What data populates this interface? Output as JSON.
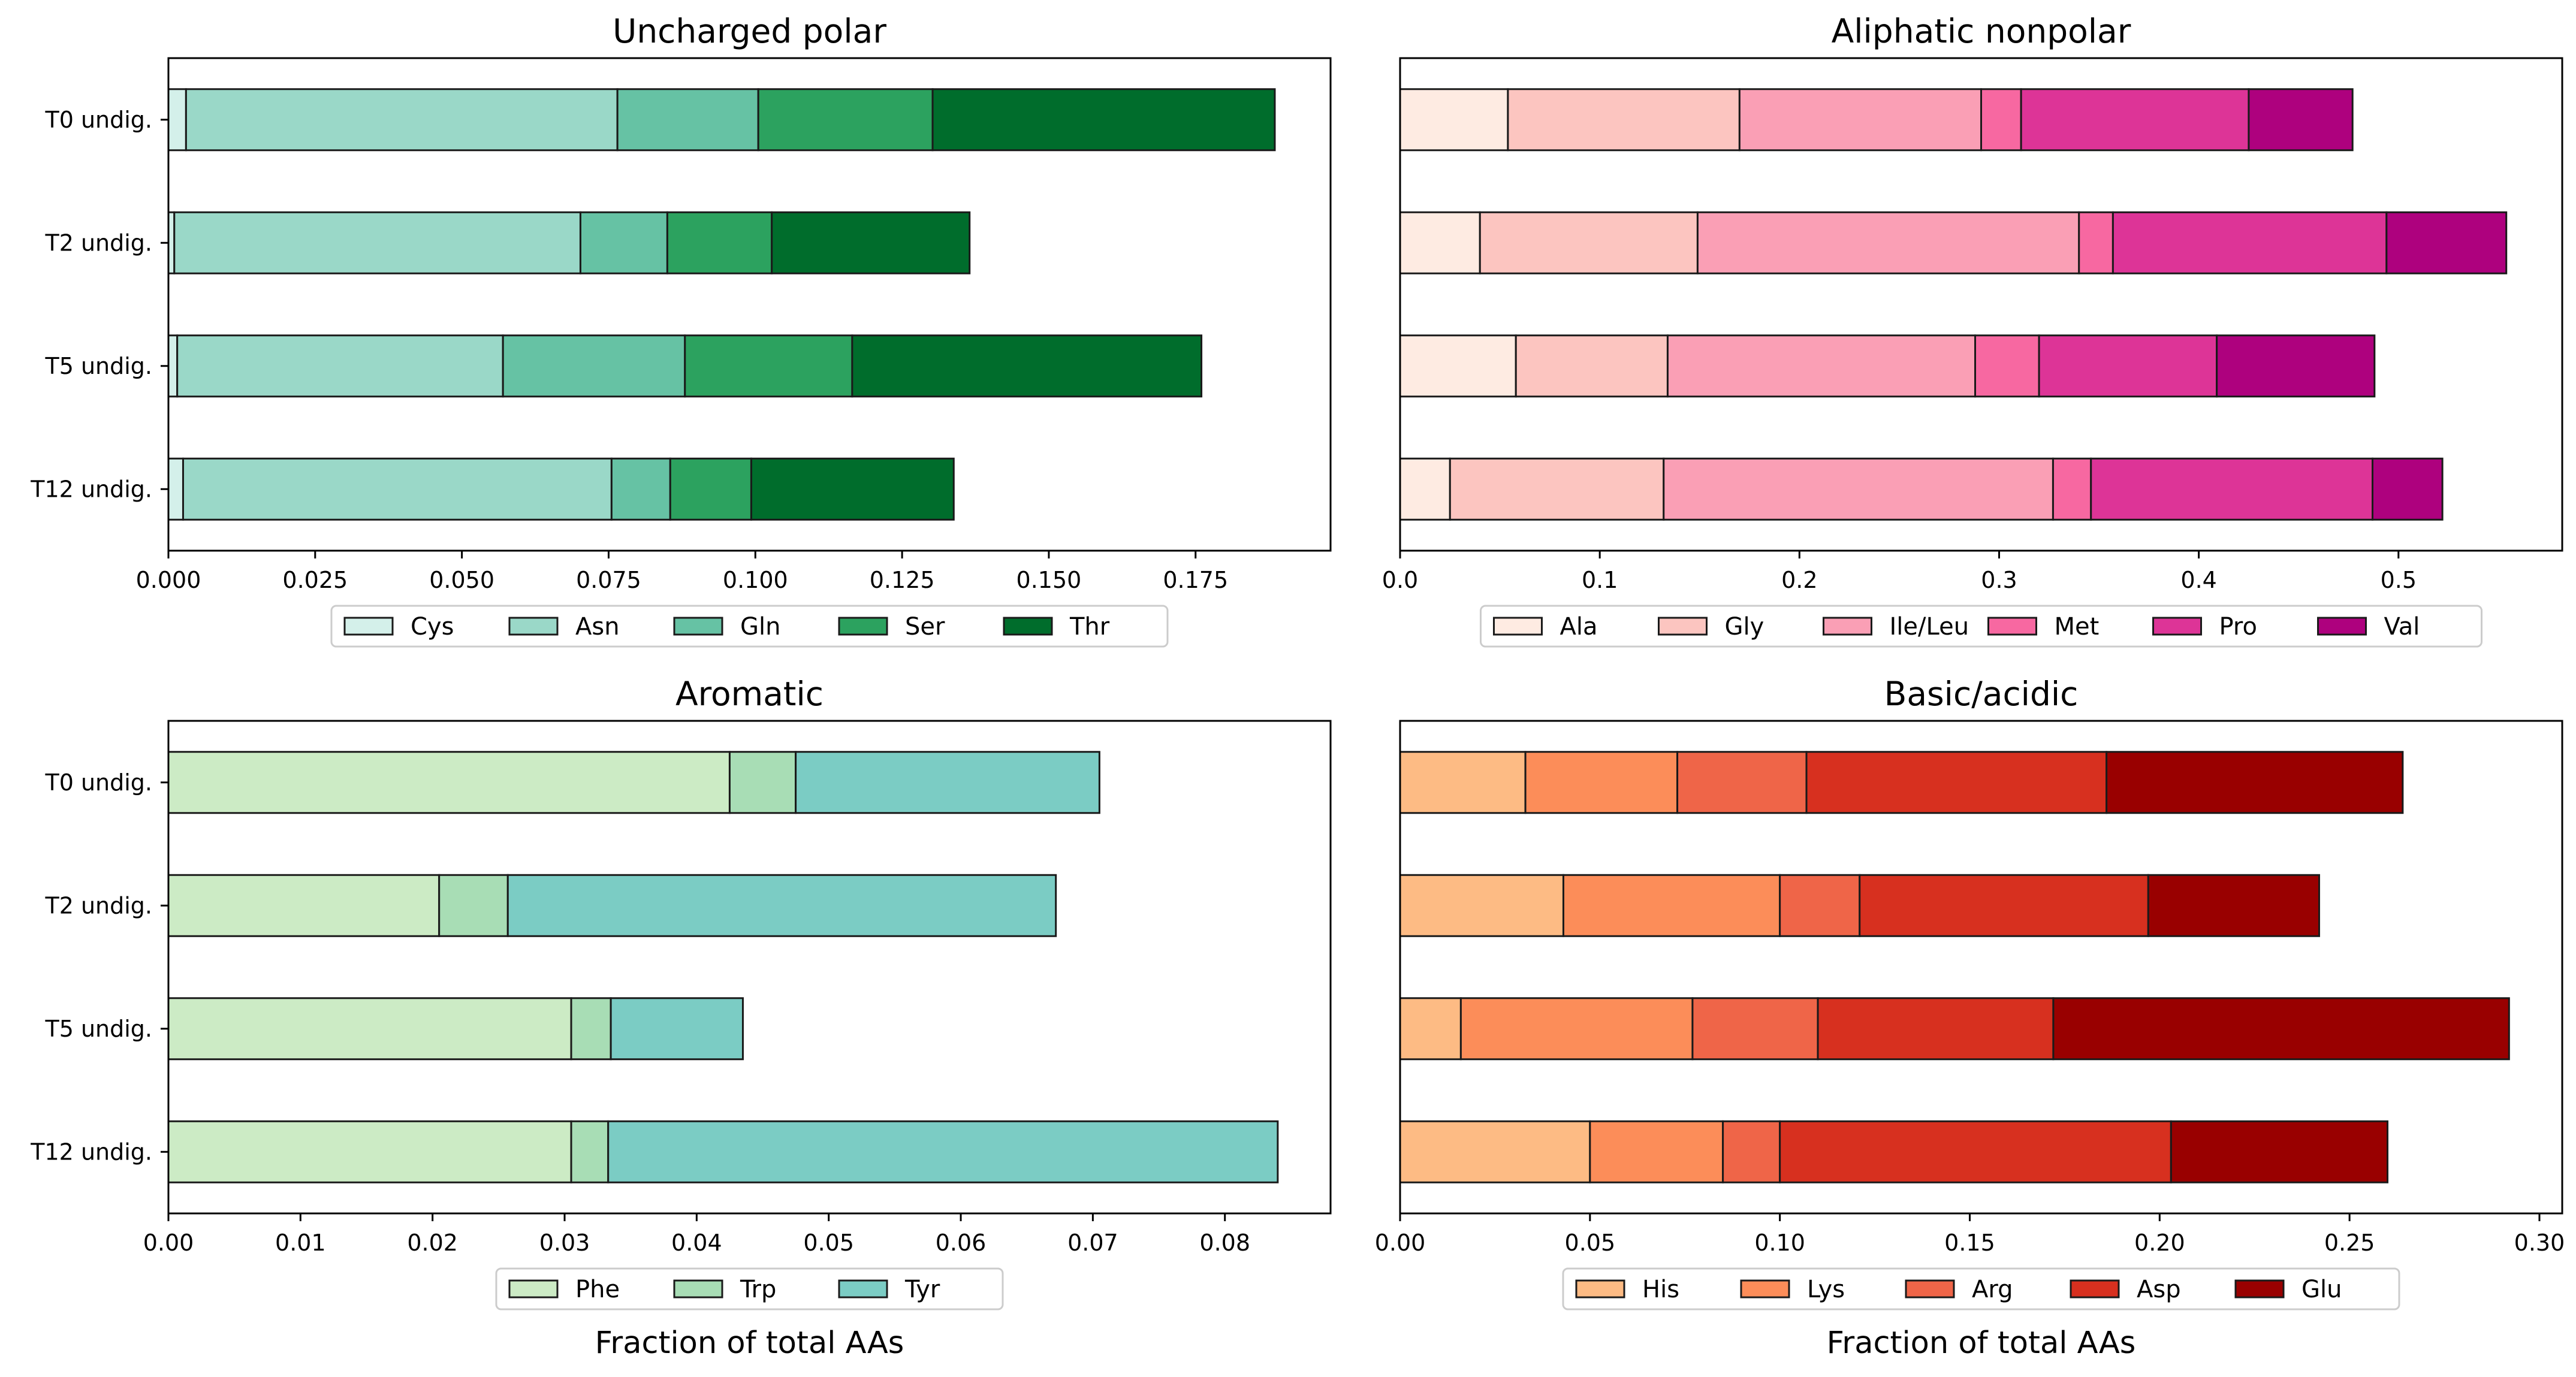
{
  "figure": {
    "panels": [
      {
        "id": "uncharged-polar",
        "title": "Uncharged polar",
        "xlabel": "",
        "legend_placement": "below",
        "colors": [
          "#d4f0ea",
          "#9ad8c8",
          "#66c2a4",
          "#2ca25f",
          "#006d2c"
        ]
      },
      {
        "id": "aliphatic-nonpolar",
        "title": "Aliphatic nonpolar",
        "xlabel": "",
        "legend_placement": "below",
        "colors": [
          "#feebe2",
          "#fcc5c0",
          "#fa9fb5",
          "#f768a1",
          "#dd3497",
          "#ae017e"
        ]
      },
      {
        "id": "aromatic",
        "title": "Aromatic",
        "xlabel": "Fraction of total AAs",
        "legend_placement": "below",
        "colors": [
          "#ccebc5",
          "#a8ddb5",
          "#7bccc4"
        ]
      },
      {
        "id": "basic-acidic",
        "title": "Basic/acidic",
        "xlabel": "Fraction of total AAs",
        "legend_placement": "below",
        "colors": [
          "#fdbb84",
          "#fc8d59",
          "#ef6548",
          "#d7301f",
          "#990000"
        ]
      }
    ]
  },
  "chart_data": [
    {
      "type": "bar",
      "orientation": "horizontal",
      "stacked": true,
      "title": "Uncharged polar",
      "xlabel": "",
      "ylabel": "",
      "categories": [
        "T0 undig.",
        "T2 undig.",
        "T5 undig.",
        "T12 undig."
      ],
      "xlim": [
        0,
        0.198
      ],
      "xticks": [
        "0.000",
        "0.025",
        "0.050",
        "0.075",
        "0.100",
        "0.125",
        "0.150",
        "0.175"
      ],
      "xtick_values": [
        0,
        0.025,
        0.05,
        0.075,
        0.1,
        0.125,
        0.15,
        0.175
      ],
      "grid": false,
      "series": [
        {
          "name": "Cys",
          "values": [
            0.003,
            0.001,
            0.0015,
            0.0025
          ]
        },
        {
          "name": "Asn",
          "values": [
            0.0735,
            0.0692,
            0.0555,
            0.073
          ]
        },
        {
          "name": "Gln",
          "values": [
            0.024,
            0.0148,
            0.031,
            0.01
          ]
        },
        {
          "name": "Ser",
          "values": [
            0.0297,
            0.0178,
            0.0285,
            0.0138
          ]
        },
        {
          "name": "Thr",
          "values": [
            0.0583,
            0.0337,
            0.0595,
            0.0345
          ]
        }
      ]
    },
    {
      "type": "bar",
      "orientation": "horizontal",
      "stacked": true,
      "title": "Aliphatic nonpolar",
      "xlabel": "",
      "ylabel": "",
      "categories": [
        "T0 undig.",
        "T2 undig.",
        "T5 undig.",
        "T12 undig."
      ],
      "xlim": [
        0,
        0.582
      ],
      "xticks": [
        "0.0",
        "0.1",
        "0.2",
        "0.3",
        "0.4",
        "0.5"
      ],
      "xtick_values": [
        0,
        0.1,
        0.2,
        0.3,
        0.4,
        0.5
      ],
      "grid": false,
      "series": [
        {
          "name": "Ala",
          "values": [
            0.054,
            0.04,
            0.058,
            0.025
          ]
        },
        {
          "name": "Gly",
          "values": [
            0.116,
            0.109,
            0.076,
            0.107
          ]
        },
        {
          "name": "Ile/Leu",
          "values": [
            0.121,
            0.191,
            0.154,
            0.195
          ]
        },
        {
          "name": "Met",
          "values": [
            0.02,
            0.017,
            0.032,
            0.019
          ]
        },
        {
          "name": "Pro",
          "values": [
            0.114,
            0.137,
            0.089,
            0.141
          ]
        },
        {
          "name": "Val",
          "values": [
            0.052,
            0.06,
            0.079,
            0.035
          ]
        }
      ]
    },
    {
      "type": "bar",
      "orientation": "horizontal",
      "stacked": true,
      "title": "Aromatic",
      "xlabel": "Fraction of total AAs",
      "ylabel": "",
      "categories": [
        "T0 undig.",
        "T2 undig.",
        "T5 undig.",
        "T12 undig."
      ],
      "xlim": [
        0,
        0.088
      ],
      "xticks": [
        "0.00",
        "0.01",
        "0.02",
        "0.03",
        "0.04",
        "0.05",
        "0.06",
        "0.07",
        "0.08"
      ],
      "xtick_values": [
        0,
        0.01,
        0.02,
        0.03,
        0.04,
        0.05,
        0.06,
        0.07,
        0.08
      ],
      "grid": false,
      "series": [
        {
          "name": "Phe",
          "values": [
            0.0425,
            0.0205,
            0.0305,
            0.0305
          ]
        },
        {
          "name": "Trp",
          "values": [
            0.005,
            0.0052,
            0.003,
            0.0028
          ]
        },
        {
          "name": "Tyr",
          "values": [
            0.023,
            0.0415,
            0.01,
            0.0507
          ]
        }
      ]
    },
    {
      "type": "bar",
      "orientation": "horizontal",
      "stacked": true,
      "title": "Basic/acidic",
      "xlabel": "Fraction of total AAs",
      "ylabel": "",
      "categories": [
        "T0 undig.",
        "T2 undig.",
        "T5 undig.",
        "T12 undig."
      ],
      "xlim": [
        0,
        0.306
      ],
      "xticks": [
        "0.00",
        "0.05",
        "0.10",
        "0.15",
        "0.20",
        "0.25",
        "0.30"
      ],
      "xtick_values": [
        0,
        0.05,
        0.1,
        0.15,
        0.2,
        0.25,
        0.3
      ],
      "grid": false,
      "series": [
        {
          "name": "His",
          "values": [
            0.033,
            0.043,
            0.016,
            0.05
          ]
        },
        {
          "name": "Lys",
          "values": [
            0.04,
            0.057,
            0.061,
            0.035
          ]
        },
        {
          "name": "Arg",
          "values": [
            0.034,
            0.021,
            0.033,
            0.015
          ]
        },
        {
          "name": "Asp",
          "values": [
            0.079,
            0.076,
            0.062,
            0.103
          ]
        },
        {
          "name": "Glu",
          "values": [
            0.078,
            0.045,
            0.12,
            0.057
          ]
        }
      ]
    }
  ]
}
